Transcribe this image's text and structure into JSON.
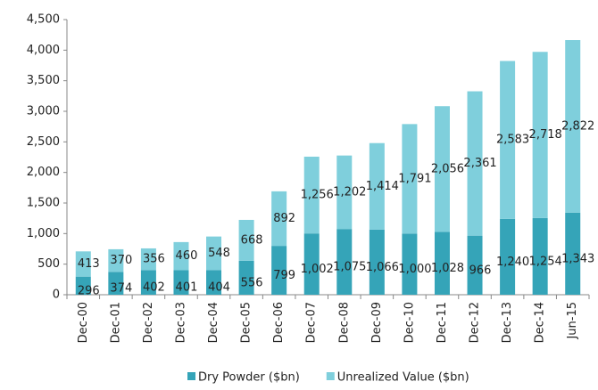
{
  "chart_data": {
    "type": "stacked_bar",
    "categories": [
      "Dec-00",
      "Dec-01",
      "Dec-02",
      "Dec-03",
      "Dec-04",
      "Dec-05",
      "Dec-06",
      "Dec-07",
      "Dec-08",
      "Dec-09",
      "Dec-10",
      "Dec-11",
      "Dec-12",
      "Dec-13",
      "Dec-14",
      "Jun-15"
    ],
    "series": [
      {
        "name": "Dry Powder ($bn)",
        "color": "#35a4b8",
        "values": [
          296,
          374,
          402,
          401,
          404,
          556,
          799,
          1002,
          1075,
          1066,
          1000,
          1028,
          966,
          1240,
          1254,
          1343
        ],
        "value_labels": [
          "296",
          "374",
          "402",
          "401",
          "404",
          "556",
          "799",
          "1,002",
          "1,075",
          "1,066",
          "1,000",
          "1,028",
          "966",
          "1,240",
          "1,254",
          "1,343"
        ]
      },
      {
        "name": "Unrealized Value ($bn)",
        "color": "#7fcfdc",
        "values": [
          413,
          370,
          356,
          460,
          548,
          668,
          892,
          1256,
          1202,
          1414,
          1791,
          2056,
          2361,
          2583,
          2718,
          2822
        ],
        "value_labels": [
          "413",
          "370",
          "356",
          "460",
          "548",
          "668",
          "892",
          "1,256",
          "1,202",
          "1,414",
          "1,791",
          "2,056",
          "2,361",
          "2,583",
          "2,718",
          "2,822"
        ]
      }
    ],
    "ylim": [
      0,
      4500
    ],
    "yticks": [
      0,
      500,
      {
        "value": 1000,
        "label": "1,000"
      },
      {
        "value": 1500,
        "label": "1,500"
      },
      {
        "value": 2000,
        "label": "2,000"
      },
      {
        "value": 2500,
        "label": "2,500"
      },
      {
        "value": 3000,
        "label": "3,000"
      },
      {
        "value": 3500,
        "label": "3,500"
      },
      {
        "value": 4000,
        "label": "4,000"
      },
      {
        "value": 4500,
        "label": "4,500"
      }
    ],
    "legend": "bottom"
  }
}
